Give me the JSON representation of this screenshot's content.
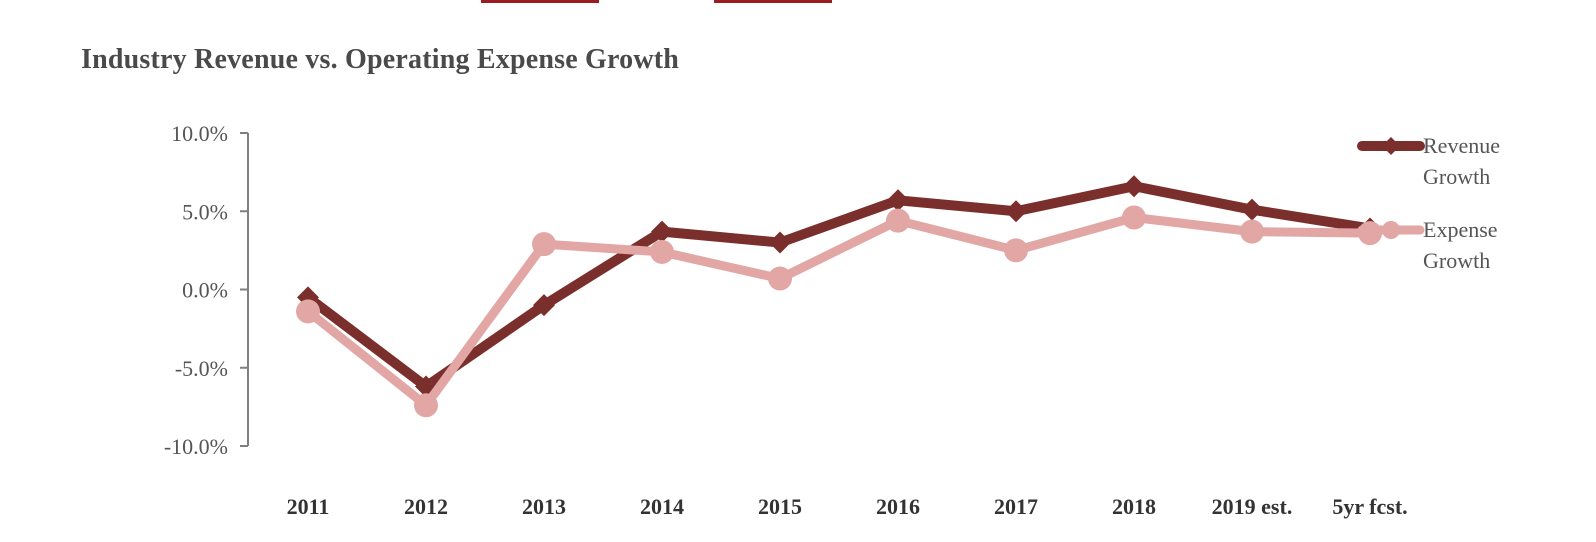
{
  "colors": {
    "revenue": "#7b2f2c",
    "expense": "#e2a6a4",
    "axis": "#7f7f7f",
    "accent": "#9b1c22"
  },
  "chart_data": {
    "type": "line",
    "title": "Industry Revenue vs. Operating Expense Growth",
    "xlabel": "",
    "ylabel": "",
    "categories": [
      "2011",
      "2012",
      "2013",
      "2014",
      "2015",
      "2016",
      "2017",
      "2018",
      "2019 est.",
      "5yr fcst."
    ],
    "ylim": [
      -10.0,
      10.0
    ],
    "y_ticks": [
      10.0,
      5.0,
      0.0,
      -5.0,
      -10.0
    ],
    "y_tick_labels": [
      "10.0%",
      "5.0%",
      "0.0%",
      "-5.0%",
      "-10.0%"
    ],
    "grid": false,
    "legend_position": "right",
    "series": [
      {
        "name": "Revenue Growth",
        "legend_lines": [
          "Revenue",
          "Growth"
        ],
        "marker": "diamond",
        "values": [
          -0.5,
          -6.2,
          -1.0,
          3.7,
          3.0,
          5.7,
          5.0,
          6.6,
          5.1,
          3.9
        ]
      },
      {
        "name": "Expense Growth",
        "legend_lines": [
          "Expense",
          "Growth"
        ],
        "marker": "circle",
        "values": [
          -1.4,
          -7.4,
          2.9,
          2.4,
          0.7,
          4.4,
          2.5,
          4.6,
          3.7,
          3.6
        ]
      }
    ]
  }
}
